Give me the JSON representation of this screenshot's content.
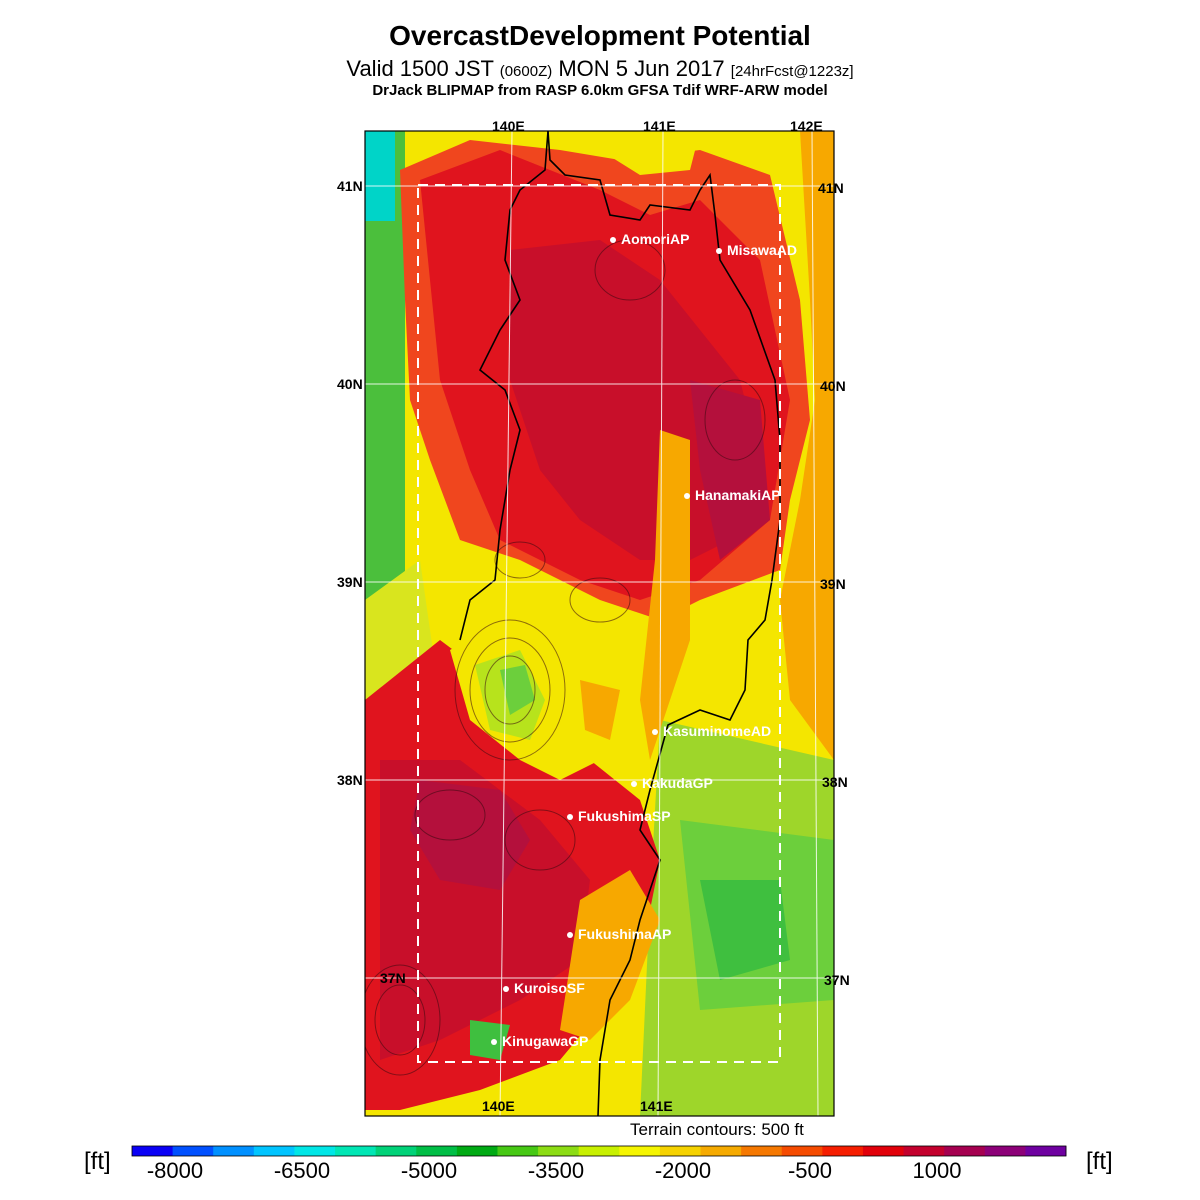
{
  "title": "OvercastDevelopment Potential",
  "subtitle": {
    "a": "Valid 1500 JST",
    "b": "(0600Z)",
    "c": "MON 5 Jun 2017",
    "d": "[24hrFcst@1223z]"
  },
  "model": "DrJack BLIPMAP from RASP 6.0km GFSA Tdif WRF-ARW model",
  "map": {
    "lon_labels_top": [
      "140E",
      "141E",
      "142E"
    ],
    "lon_labels_bottom": [
      "140E",
      "141E"
    ],
    "lat_labels_left": [
      "41N",
      "40N",
      "39N",
      "38N",
      "37N"
    ],
    "lat_labels_right": [
      "41N",
      "40N",
      "39N",
      "38N",
      "37N"
    ],
    "sites": [
      {
        "name": "AomoriAP"
      },
      {
        "name": "MisawaAD"
      },
      {
        "name": "HanamakiAP"
      },
      {
        "name": "KasuminomeAD"
      },
      {
        "name": "KakudaGP"
      },
      {
        "name": "FukushimaSP"
      },
      {
        "name": "FukushimaAP"
      },
      {
        "name": "KuroisoSF"
      },
      {
        "name": "KinugawaGP"
      }
    ],
    "field_colors": {
      "sea_cyan": "#00d4c8",
      "green": "#3fbf3f",
      "yellow_green": "#b7e31c",
      "yellow": "#f4f000",
      "orange": "#f7a800",
      "red_orange": "#f0461e",
      "red": "#e0141e",
      "crimson": "#b4103c"
    }
  },
  "terrain_note": "Terrain contours: 500 ft",
  "colorbar": {
    "unit": "[ft]",
    "labels": [
      "-8000",
      "-6500",
      "-5000",
      "-3500",
      "-2000",
      "-500",
      "1000"
    ],
    "colors": [
      "#0a00f5",
      "#0050ff",
      "#0090ff",
      "#00c4ff",
      "#00e6e6",
      "#00e6b4",
      "#00d278",
      "#00be46",
      "#00aa14",
      "#46c814",
      "#8cdc14",
      "#c8f000",
      "#f5f500",
      "#f5d200",
      "#f5aa00",
      "#f57800",
      "#f54b00",
      "#f51e00",
      "#e1000a",
      "#c3002d",
      "#a50050",
      "#8c0078",
      "#6e00a0"
    ]
  }
}
